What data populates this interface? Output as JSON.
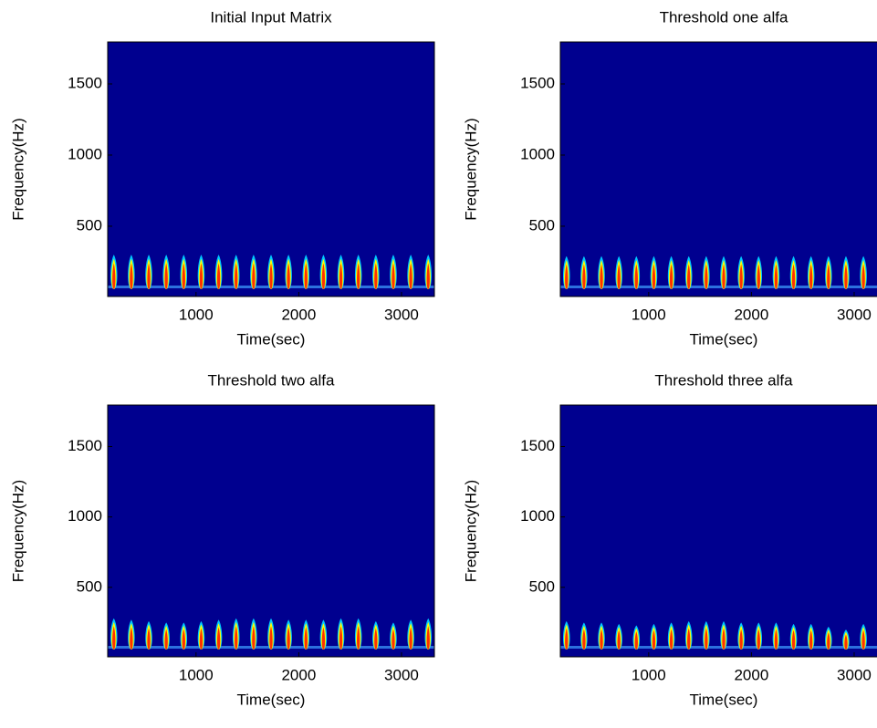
{
  "chart_data": [
    {
      "type": "spectrogram",
      "title": "Initial Input Matrix",
      "xlabel": "Time(sec)",
      "ylabel": "Frequency(Hz)",
      "xlim": [
        140,
        3320
      ],
      "ylim": [
        6,
        1795
      ],
      "xticks": [
        1000,
        2000,
        3000
      ],
      "yticks": [
        500,
        1000,
        1500
      ],
      "x": [
        200,
        370,
        540,
        710,
        880,
        1050,
        1220,
        1390,
        1560,
        1730,
        1900,
        2070,
        2240,
        2410,
        2580,
        2750,
        2920,
        3090,
        3260
      ],
      "values": [
        300,
        300,
        300,
        300,
        300,
        300,
        300,
        300,
        300,
        300,
        300,
        300,
        300,
        300,
        300,
        300,
        300,
        300,
        300
      ]
    },
    {
      "type": "spectrogram",
      "title": "Threshold one alfa",
      "xlabel": "Time(sec)",
      "ylabel": "Frequency(Hz)",
      "xlim": [
        140,
        3320
      ],
      "ylim": [
        6,
        1795
      ],
      "xticks": [
        1000,
        2000,
        3000
      ],
      "yticks": [
        500,
        1000,
        1500
      ],
      "x": [
        200,
        370,
        540,
        710,
        880,
        1050,
        1220,
        1390,
        1560,
        1730,
        1900,
        2070,
        2240,
        2410,
        2580,
        2750,
        2920,
        3090,
        3260
      ],
      "values": [
        290,
        290,
        290,
        290,
        290,
        290,
        290,
        290,
        290,
        290,
        290,
        290,
        290,
        290,
        290,
        290,
        290,
        290,
        290
      ]
    },
    {
      "type": "spectrogram",
      "title": "Threshold two alfa",
      "xlabel": "Time(sec)",
      "ylabel": "Frequency(Hz)",
      "xlim": [
        140,
        3320
      ],
      "ylim": [
        6,
        1795
      ],
      "xticks": [
        1000,
        2000,
        3000
      ],
      "yticks": [
        500,
        1000,
        1500
      ],
      "x": [
        200,
        370,
        540,
        710,
        880,
        1050,
        1220,
        1390,
        1560,
        1730,
        1900,
        2070,
        2240,
        2410,
        2580,
        2750,
        2920,
        3090,
        3260
      ],
      "values": [
        280,
        270,
        260,
        250,
        250,
        260,
        270,
        280,
        280,
        280,
        270,
        270,
        270,
        280,
        280,
        260,
        250,
        270,
        280
      ]
    },
    {
      "type": "spectrogram",
      "title": "Threshold three alfa",
      "xlabel": "Time(sec)",
      "ylabel": "Frequency(Hz)",
      "xlim": [
        140,
        3320
      ],
      "ylim": [
        6,
        1795
      ],
      "xticks": [
        1000,
        2000,
        3000
      ],
      "yticks": [
        500,
        1000,
        1500
      ],
      "x": [
        200,
        370,
        540,
        710,
        880,
        1050,
        1220,
        1390,
        1560,
        1730,
        1900,
        2070,
        2240,
        2410,
        2580,
        2750,
        2920,
        3090,
        3260
      ],
      "values": [
        260,
        250,
        250,
        240,
        230,
        240,
        250,
        260,
        260,
        260,
        250,
        250,
        250,
        240,
        240,
        220,
        200,
        240,
        260
      ]
    }
  ]
}
